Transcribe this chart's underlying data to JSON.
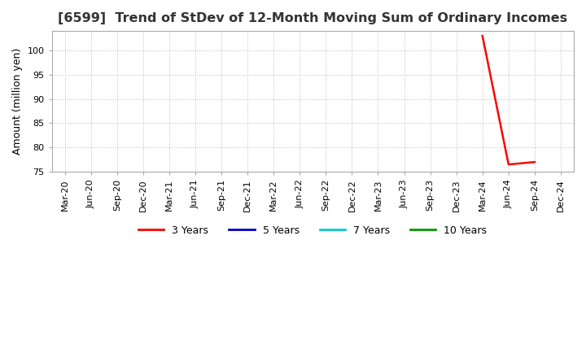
{
  "title": "[6599]  Trend of StDev of 12-Month Moving Sum of Ordinary Incomes",
  "ylabel": "Amount (million yen)",
  "ylim": [
    75,
    104
  ],
  "yticks": [
    75,
    80,
    85,
    90,
    95,
    100
  ],
  "background_color": "#ffffff",
  "plot_bg_color": "#ffffff",
  "grid_color": "#bbbbbb",
  "series": {
    "3 Years": {
      "color": "#ff0000",
      "dates": [
        "Mar-24",
        "Jun-24",
        "Sep-24"
      ],
      "values": [
        103.0,
        76.5,
        77.0
      ]
    },
    "5 Years": {
      "color": "#0000cc",
      "dates": [],
      "values": []
    },
    "7 Years": {
      "color": "#00cccc",
      "dates": [],
      "values": []
    },
    "10 Years": {
      "color": "#009900",
      "dates": [],
      "values": []
    }
  },
  "x_tick_labels": [
    "Mar-20",
    "Jun-20",
    "Sep-20",
    "Dec-20",
    "Mar-21",
    "Jun-21",
    "Sep-21",
    "Dec-21",
    "Mar-22",
    "Jun-22",
    "Sep-22",
    "Dec-22",
    "Mar-23",
    "Jun-23",
    "Sep-23",
    "Dec-23",
    "Mar-24",
    "Jun-24",
    "Sep-24",
    "Dec-24"
  ],
  "legend_entries": [
    "3 Years",
    "5 Years",
    "7 Years",
    "10 Years"
  ],
  "legend_colors": [
    "#ff0000",
    "#0000cc",
    "#00cccc",
    "#009900"
  ],
  "title_fontsize": 11.5,
  "axis_label_fontsize": 9,
  "tick_fontsize": 8,
  "legend_fontsize": 9
}
